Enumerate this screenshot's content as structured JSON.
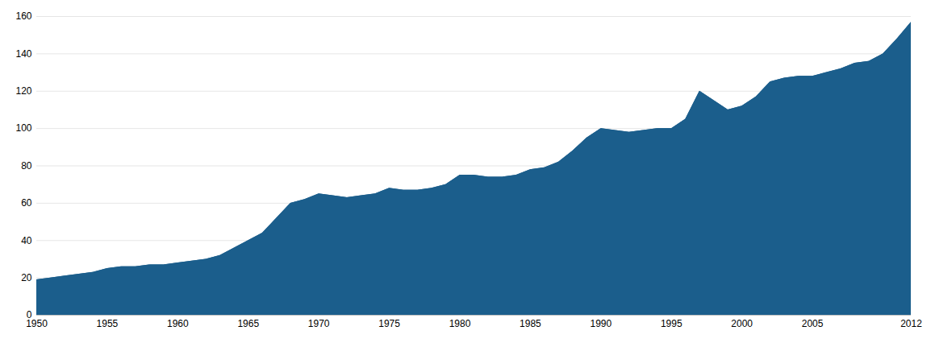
{
  "chart_data": {
    "type": "area",
    "x": [
      1950,
      1951,
      1952,
      1953,
      1954,
      1955,
      1956,
      1957,
      1958,
      1959,
      1960,
      1961,
      1962,
      1963,
      1964,
      1965,
      1966,
      1967,
      1968,
      1969,
      1970,
      1971,
      1972,
      1973,
      1974,
      1975,
      1976,
      1977,
      1978,
      1979,
      1980,
      1981,
      1982,
      1983,
      1984,
      1985,
      1986,
      1987,
      1988,
      1989,
      1990,
      1991,
      1992,
      1993,
      1994,
      1995,
      1996,
      1997,
      1998,
      1999,
      2000,
      2001,
      2002,
      2003,
      2004,
      2005,
      2006,
      2007,
      2008,
      2009,
      2010,
      2011,
      2012
    ],
    "values": [
      19,
      20,
      21,
      22,
      23,
      25,
      26,
      26,
      27,
      27,
      28,
      29,
      30,
      32,
      36,
      40,
      44,
      52,
      60,
      62,
      65,
      64,
      63,
      64,
      65,
      68,
      67,
      67,
      68,
      70,
      75,
      75,
      74,
      74,
      75,
      78,
      79,
      82,
      88,
      95,
      100,
      99,
      98,
      99,
      100,
      100,
      105,
      120,
      115,
      110,
      112,
      117,
      125,
      127,
      128,
      128,
      130,
      132,
      135,
      136,
      140,
      148,
      157
    ],
    "color": "#1B5E8C",
    "xlim": [
      1950,
      2012
    ],
    "ylim": [
      0,
      160
    ],
    "xticks": [
      1950,
      1955,
      1960,
      1965,
      1970,
      1975,
      1980,
      1985,
      1990,
      1995,
      2000,
      2005,
      2012
    ],
    "yticks": [
      0,
      20,
      40,
      60,
      80,
      100,
      120,
      140,
      160
    ],
    "grid": true
  }
}
